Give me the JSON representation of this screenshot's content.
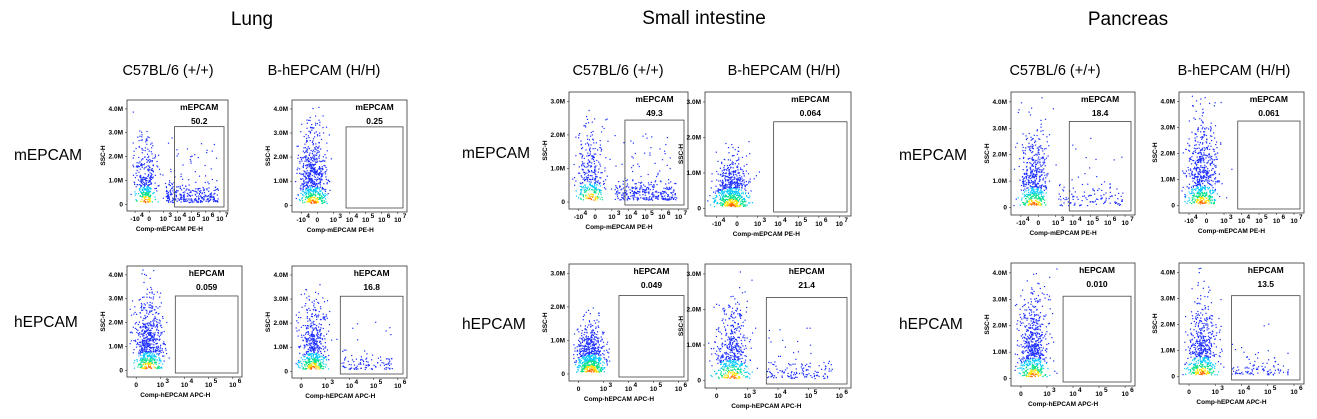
{
  "colors": {
    "frame": "#333333",
    "gate": "#444444",
    "dot_low": "#1a2cff",
    "dot_mid": "#00c8ff",
    "dot_mid2": "#00e08a",
    "dot_high": "#ffe100",
    "dot_peak": "#ff6a00"
  },
  "chart_data": {
    "type": "scatter",
    "tissues": [
      {
        "name": "Lung",
        "strains": [
          "C57BL/6 (+/+)",
          "B-hEPCAM (H/H)"
        ],
        "rows": [
          {
            "label": "mEPCAM",
            "xlabel": "Comp-mEPCAM PE-H",
            "ylabel": "SSC-H",
            "yticks": [
              "4.0M",
              "3.0M",
              "2.0M",
              "1.0M",
              "0"
            ],
            "xticks": [
              "-10",
              "0",
              "10",
              "10",
              "10",
              "10",
              "10"
            ],
            "xtick_exps": [
              "4",
              "",
              "3",
              "4",
              "5",
              "6",
              "7"
            ],
            "gate_name": "mEPCAM",
            "values": [
              "50.2",
              "0.25"
            ]
          },
          {
            "label": "hEPCAM",
            "xlabel": "Comp-hEPCAM APC-H",
            "ylabel": "SSC-H",
            "yticks": [
              "4.0M",
              "3.0M",
              "2.0M",
              "1.0M",
              "0"
            ],
            "xticks": [
              "0",
              "10",
              "10",
              "10",
              "10"
            ],
            "xtick_exps": [
              "",
              "3",
              "4",
              "5",
              "6"
            ],
            "gate_name": "hEPCAM",
            "values": [
              "0.059",
              "16.8"
            ]
          }
        ]
      },
      {
        "name": "Small intestine",
        "strains": [
          "C57BL/6 (+/+)",
          "B-hEPCAM (H/H)"
        ],
        "rows": [
          {
            "label": "mEPCAM",
            "xlabel": "Comp-mEPCAM PE-H",
            "ylabel": "SSC-H",
            "yticks": [
              "3.0M",
              "2.0M",
              "1.0M",
              "0"
            ],
            "xticks": [
              "-10",
              "0",
              "10",
              "10",
              "10",
              "10",
              "10"
            ],
            "xtick_exps": [
              "4",
              "",
              "3",
              "4",
              "5",
              "6",
              "7"
            ],
            "gate_name": "mEPCAM",
            "values": [
              "49.3",
              "0.064"
            ]
          },
          {
            "label": "hEPCAM",
            "xlabel": "Comp-hEPCAM APC-H",
            "ylabel": "SSC-H",
            "yticks": [
              "3.0M",
              "2.0M",
              "1.0M",
              "0"
            ],
            "xticks": [
              "0",
              "10",
              "10",
              "10",
              "10"
            ],
            "xtick_exps": [
              "",
              "3",
              "4",
              "5",
              "6"
            ],
            "gate_name": "hEPCAM",
            "values": [
              "0.049",
              "21.4"
            ]
          }
        ]
      },
      {
        "name": "Pancreas",
        "strains": [
          "C57BL/6 (+/+)",
          "B-hEPCAM (H/H)"
        ],
        "rows": [
          {
            "label": "mEPCAM",
            "xlabel": "Comp-mEPCAM PE-H",
            "ylabel": "SSC-H",
            "yticks": [
              "4.0M",
              "3.0M",
              "2.0M",
              "1.0M",
              "0"
            ],
            "xticks": [
              "-10",
              "0",
              "10",
              "10",
              "10",
              "10",
              "10"
            ],
            "xtick_exps": [
              "4",
              "",
              "3",
              "4",
              "5",
              "6",
              "7"
            ],
            "gate_name": "mEPCAM",
            "values": [
              "18.4",
              "0.061"
            ]
          },
          {
            "label": "hEPCAM",
            "xlabel": "Comp-hEPCAM APC-H",
            "ylabel": "SSC-H",
            "yticks": [
              "4.0M",
              "3.0M",
              "2.0M",
              "1.0M",
              "0"
            ],
            "xticks": [
              "0",
              "10",
              "10",
              "10",
              "10"
            ],
            "xtick_exps": [
              "",
              "3",
              "4",
              "5",
              "6"
            ],
            "gate_name": "hEPCAM",
            "values": [
              "0.010",
              "13.5"
            ]
          }
        ]
      }
    ]
  }
}
